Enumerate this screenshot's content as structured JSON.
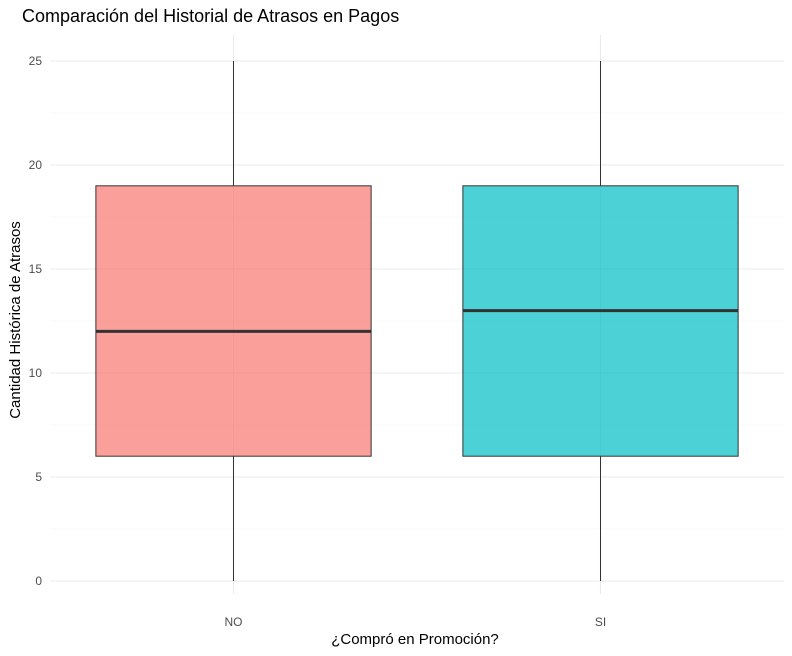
{
  "chart_data": {
    "type": "boxplot",
    "title": "Comparación del Historial de Atrasos en Pagos",
    "xlabel": "¿Compró en Promoción?",
    "ylabel": "Cantidad Histórica de Atrasos",
    "ylim": [
      0,
      25
    ],
    "yticks": [
      "0",
      "5",
      "10",
      "15",
      "20",
      "25"
    ],
    "grid": true,
    "legend": "none",
    "categories": [
      "NO",
      "SI"
    ],
    "boxes": [
      {
        "category": "NO",
        "min": 0,
        "q1": 6,
        "median": 12,
        "q3": 19,
        "max": 25,
        "color": "#F8766D"
      },
      {
        "category": "SI",
        "min": 0,
        "q1": 6,
        "median": 13,
        "q3": 19,
        "max": 25,
        "color": "#00BFC4"
      }
    ]
  }
}
